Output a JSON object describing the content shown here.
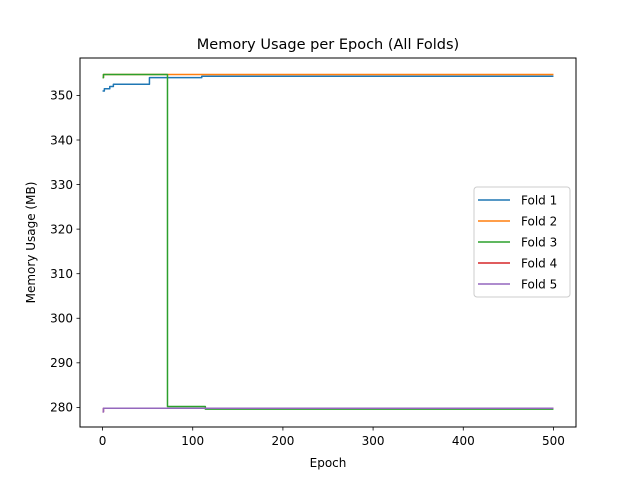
{
  "chart_data": {
    "type": "line",
    "title": "Memory Usage per Epoch (All Folds)",
    "xlabel": "Epoch",
    "ylabel": "Memory Usage (MB)",
    "xlim": [
      -25,
      525
    ],
    "ylim": [
      275.6,
      358.4
    ],
    "xticks": [
      0,
      100,
      200,
      300,
      400,
      500
    ],
    "yticks": [
      280,
      290,
      300,
      310,
      320,
      330,
      340,
      350
    ],
    "grid": false,
    "legend_position": "center-right",
    "series": [
      {
        "name": "Fold 1",
        "color": "#1f77b4",
        "x": [
          0,
          2,
          2,
          8,
          8,
          12,
          12,
          52,
          52,
          110,
          110,
          500
        ],
        "y": [
          351.0,
          351.0,
          351.5,
          351.5,
          352.0,
          352.0,
          352.5,
          352.5,
          354.0,
          354.0,
          354.3,
          354.3
        ]
      },
      {
        "name": "Fold 2",
        "color": "#ff7f0e",
        "x": [
          0,
          1,
          1,
          500
        ],
        "y": [
          354.0,
          354.0,
          354.7,
          354.7
        ]
      },
      {
        "name": "Fold 3",
        "color": "#2ca02c",
        "x": [
          0,
          1,
          1,
          72,
          72,
          114,
          114,
          500
        ],
        "y": [
          354.0,
          354.0,
          354.7,
          354.7,
          280.2,
          280.2,
          279.6,
          279.6
        ]
      },
      {
        "name": "Fold 4",
        "color": "#d62728",
        "x": [
          0,
          1,
          1,
          500
        ],
        "y": [
          279.0,
          279.0,
          279.8,
          279.8
        ]
      },
      {
        "name": "Fold 5",
        "color": "#9467bd",
        "x": [
          0,
          1,
          1,
          500
        ],
        "y": [
          279.0,
          279.0,
          279.8,
          279.8
        ]
      }
    ]
  }
}
